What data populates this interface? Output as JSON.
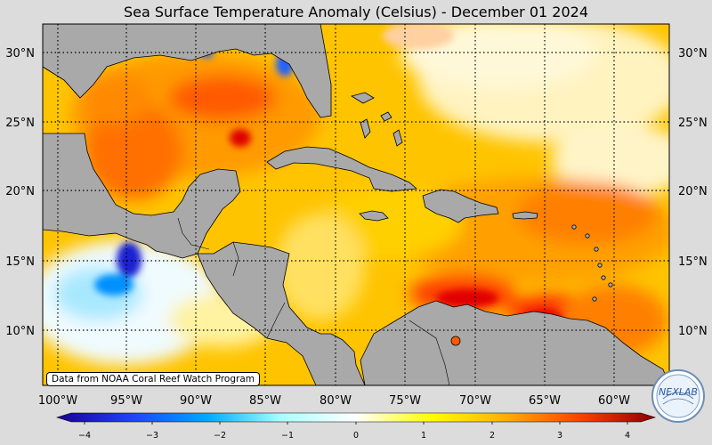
{
  "title": "Sea Surface Temperature Anomaly (Celsius) - December 01 2024",
  "credit": "Data from NOAA Coral Reef Watch Program",
  "logo_text": "NEXLAB",
  "lat_labels": [
    "30°N",
    "25°N",
    "20°N",
    "15°N",
    "10°N"
  ],
  "lon_labels": [
    "100°W",
    "95°W",
    "90°W",
    "85°W",
    "80°W",
    "75°W",
    "70°W",
    "65°W",
    "60°W"
  ],
  "colorbar": {
    "ticks": [
      "−4",
      "−3",
      "−2",
      "−1",
      "0",
      "1",
      "2",
      "3",
      "4"
    ],
    "colors": [
      "#1a0090",
      "#2040ff",
      "#00a8ff",
      "#a8ffff",
      "#ffffff",
      "#ffff00",
      "#ffb000",
      "#ff4000",
      "#8b0000"
    ]
  },
  "colors": {
    "land": "#a9a9a9",
    "ocean_warm": "#ffb400",
    "ocean_hot": "#ff5a00",
    "ocean_very_hot": "#e00000",
    "ocean_mild": "#ffd800",
    "ocean_neutral": "#fffbe0",
    "ocean_cool": "#b8f4ff",
    "ocean_cold": "#1050ff"
  }
}
